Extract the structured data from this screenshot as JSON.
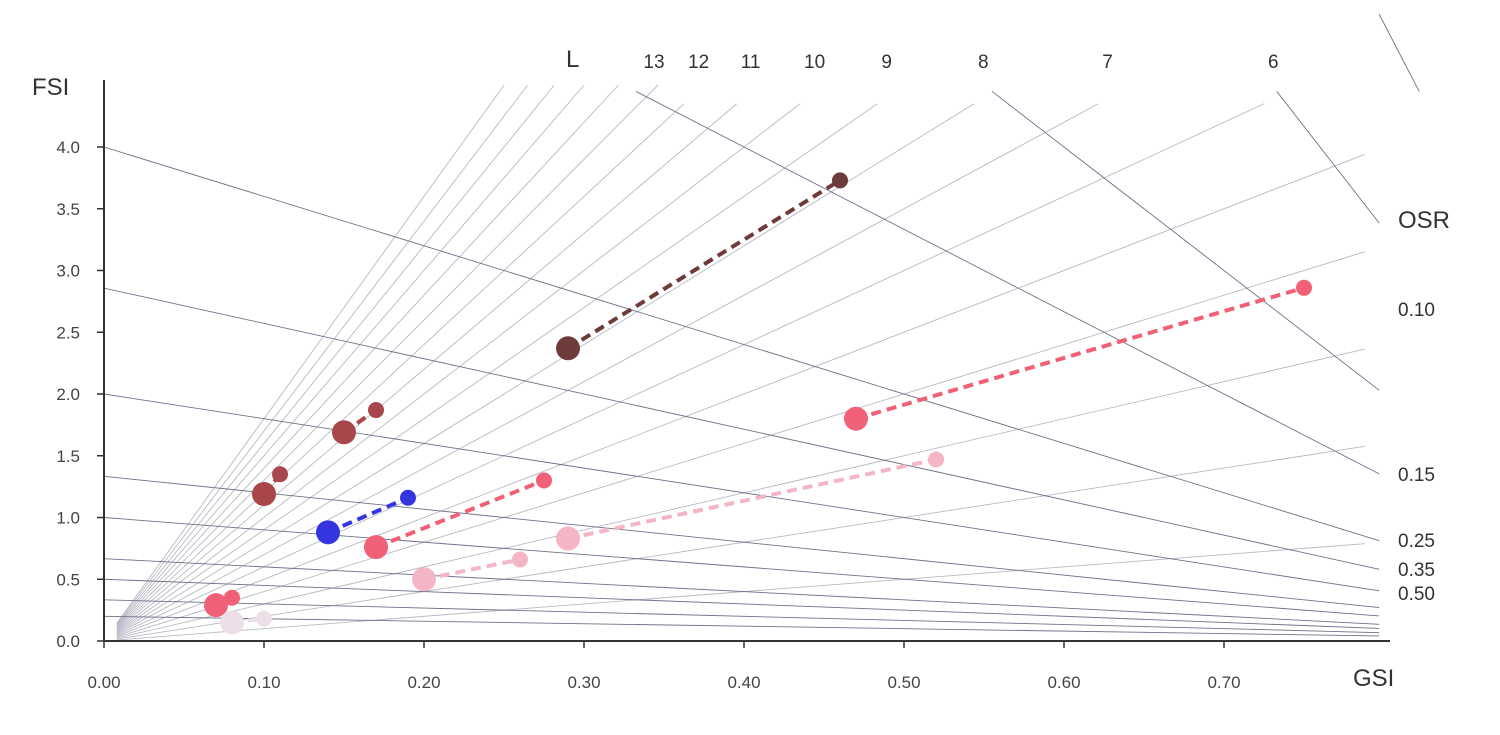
{
  "chart_data": {
    "type": "scatter",
    "title": "",
    "xlabel": "GSI",
    "ylabel": "FSI",
    "xlim": [
      0,
      0.8
    ],
    "ylim": [
      0,
      4.4
    ],
    "grid": false,
    "x_ticks": [
      "0.00",
      "0.10",
      "0.20",
      "0.30",
      "0.40",
      "0.50",
      "0.60",
      "0.70"
    ],
    "y_ticks": [
      "0.0",
      "0.5",
      "1.0",
      "1.5",
      "2.0",
      "2.5",
      "3.0",
      "3.5",
      "4.0"
    ],
    "layer_lines": {
      "label": "L",
      "values": [
        6,
        7,
        8,
        9,
        10,
        11,
        12,
        13
      ],
      "labels": [
        "6",
        "7",
        "8",
        "9",
        "10",
        "11",
        "12",
        "13"
      ],
      "unlabeled_values": [
        1,
        2,
        3,
        4,
        5,
        14,
        15,
        16,
        17,
        18
      ]
    },
    "osr_lines": {
      "label": "OSR",
      "values": [
        0.1,
        0.15,
        0.25,
        0.35,
        0.5
      ],
      "labels": [
        "0.10",
        "0.15",
        "0.25",
        "0.35",
        "0.50"
      ],
      "unlabeled_values": [
        0.04,
        0.06,
        0.75,
        1.0,
        1.5,
        2.0,
        3.0,
        5.0
      ]
    },
    "colors": {
      "dark_brown": "#6e3b3b",
      "brown_red": "#a8464b",
      "blue": "#3535e0",
      "coral": "#f06077",
      "light_pink": "#f4b6c4",
      "pale": "#ecdfe8",
      "grid_line": "#b8b8c6",
      "axis": "#333333"
    },
    "series": [
      {
        "color": "#6e3b3b",
        "start": [
          0.29,
          2.37
        ],
        "end": [
          0.46,
          3.73
        ],
        "dashed": true
      },
      {
        "color": "#f06077",
        "start": [
          0.47,
          1.8
        ],
        "end": [
          0.75,
          2.86
        ],
        "dashed": true
      },
      {
        "color": "#f06077",
        "start": [
          0.17,
          0.76
        ],
        "end": [
          0.275,
          1.3
        ],
        "dashed": true
      },
      {
        "color": "#f4b6c4",
        "start": [
          0.29,
          0.83
        ],
        "end": [
          0.52,
          1.47
        ],
        "dashed": true
      },
      {
        "color": "#f4b6c4",
        "start": [
          0.2,
          0.5
        ],
        "end": [
          0.26,
          0.66
        ],
        "dashed": true
      },
      {
        "color": "#3535e0",
        "start": [
          0.14,
          0.88
        ],
        "end": [
          0.19,
          1.16
        ],
        "dashed": true
      },
      {
        "color": "#a8464b",
        "start": [
          0.15,
          1.69
        ],
        "end": [
          0.17,
          1.87
        ],
        "dashed": true
      },
      {
        "color": "#a8464b",
        "start": [
          0.1,
          1.19
        ],
        "end": [
          0.11,
          1.35
        ],
        "dashed": true
      },
      {
        "color": "#f06077",
        "start": [
          0.07,
          0.29
        ],
        "end": [
          0.08,
          0.35
        ],
        "dashed": true
      },
      {
        "color": "#ecdfe8",
        "start": [
          0.08,
          0.15
        ],
        "end": [
          0.1,
          0.18
        ],
        "dashed": true
      }
    ]
  }
}
